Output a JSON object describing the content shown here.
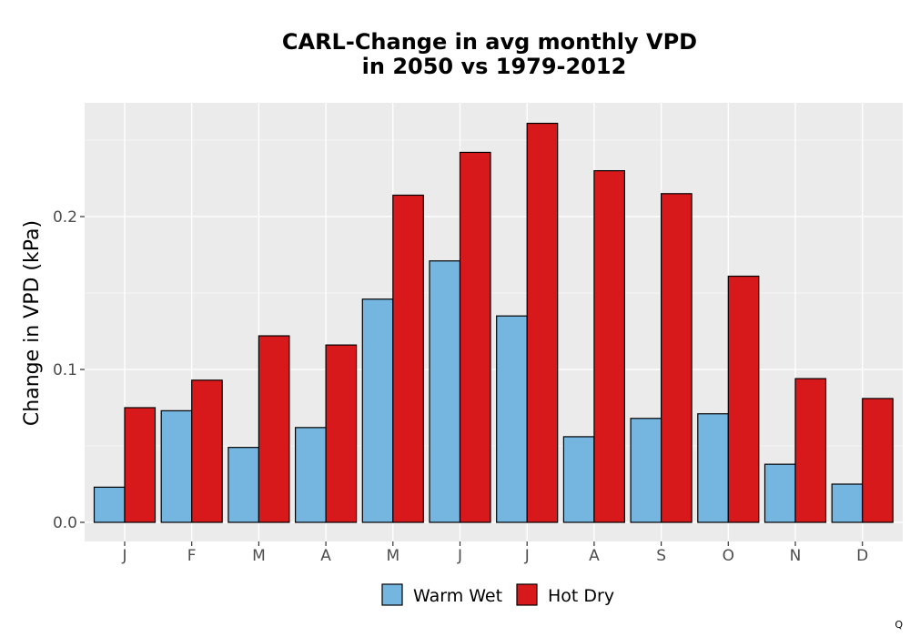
{
  "chart_data": {
    "type": "bar",
    "title_line1": "CARL-Change in avg monthly VPD",
    "title_line2": "in 2050 vs 1979-2012",
    "xlabel": "",
    "ylabel": "Change in VPD (kPa)",
    "categories": [
      "J",
      "F",
      "M",
      "A",
      "M",
      "J",
      "J",
      "A",
      "S",
      "O",
      "N",
      "D"
    ],
    "series": [
      {
        "name": "Warm Wet",
        "color": "#74B6E0",
        "values": [
          0.023,
          0.073,
          0.049,
          0.062,
          0.146,
          0.171,
          0.135,
          0.056,
          0.068,
          0.071,
          0.038,
          0.025
        ]
      },
      {
        "name": "Hot Dry",
        "color": "#D7191C",
        "values": [
          0.075,
          0.093,
          0.122,
          0.116,
          0.214,
          0.242,
          0.261,
          0.23,
          0.215,
          0.161,
          0.094,
          0.081
        ]
      }
    ],
    "yticks": [
      0.0,
      0.1,
      0.2
    ],
    "ytick_labels": [
      "0.0",
      "0.1",
      "0.2"
    ],
    "ylim": [
      -0.013,
      0.274
    ],
    "grid": true,
    "legend_position": "bottom",
    "panel_color": "#EBEBEB"
  },
  "corner_mark": "Q"
}
